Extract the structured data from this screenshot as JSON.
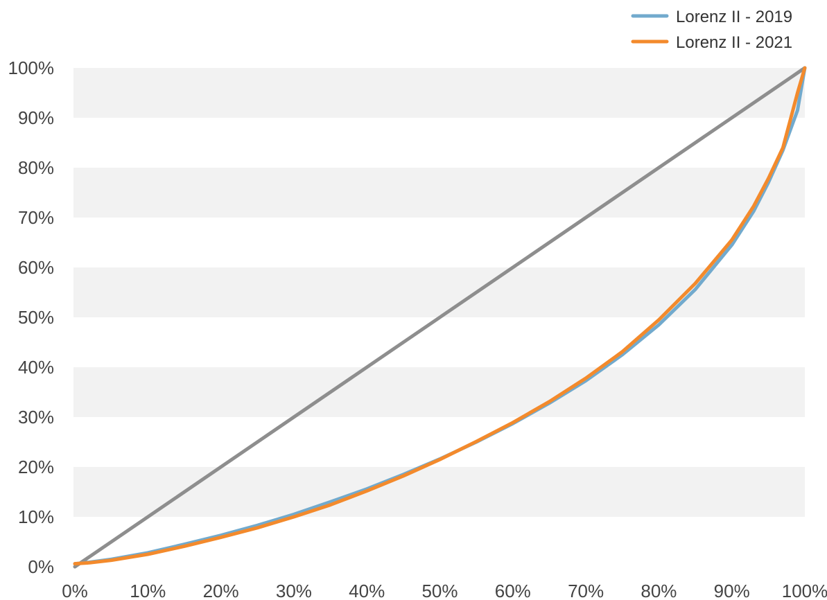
{
  "chart_data": {
    "type": "line",
    "title": "",
    "xlabel": "",
    "ylabel": "",
    "xlim": [
      0,
      100
    ],
    "ylim": [
      0,
      100
    ],
    "x_ticks": [
      "0%",
      "10%",
      "20%",
      "30%",
      "40%",
      "50%",
      "60%",
      "70%",
      "80%",
      "90%",
      "100%"
    ],
    "y_ticks": [
      "0%",
      "10%",
      "20%",
      "30%",
      "40%",
      "50%",
      "60%",
      "70%",
      "80%",
      "90%",
      "100%"
    ],
    "grid": "alternating horizontal bands",
    "legend_position": "top-right",
    "equality_line": {
      "color": "#8e8e8e",
      "x": [
        0,
        100
      ],
      "y": [
        0,
        100
      ]
    },
    "series": [
      {
        "name": "Lorenz II - 2019",
        "color": "#72aacd",
        "x": [
          0,
          2,
          5,
          10,
          15,
          20,
          25,
          30,
          35,
          40,
          45,
          50,
          55,
          60,
          65,
          70,
          75,
          80,
          85,
          90,
          93,
          95,
          97,
          98,
          99,
          100
        ],
        "y": [
          0.6,
          0.9,
          1.5,
          2.8,
          4.5,
          6.3,
          8.3,
          10.5,
          13.0,
          15.6,
          18.5,
          21.6,
          25.0,
          28.7,
          32.8,
          37.3,
          42.5,
          48.5,
          55.6,
          64.5,
          71.3,
          77.0,
          83.5,
          87.5,
          91.5,
          100
        ]
      },
      {
        "name": "Lorenz II - 2021",
        "color": "#f38a2c",
        "x": [
          0,
          2,
          5,
          10,
          15,
          20,
          25,
          30,
          35,
          40,
          45,
          50,
          55,
          60,
          65,
          70,
          75,
          80,
          85,
          90,
          93,
          95,
          97,
          98,
          99,
          100
        ],
        "y": [
          0.6,
          0.8,
          1.3,
          2.5,
          4.1,
          5.9,
          7.8,
          10.0,
          12.4,
          15.2,
          18.2,
          21.5,
          25.1,
          28.9,
          33.1,
          37.8,
          43.1,
          49.5,
          56.8,
          65.5,
          72.3,
          77.8,
          84.0,
          89.5,
          95.0,
          100
        ]
      }
    ]
  }
}
